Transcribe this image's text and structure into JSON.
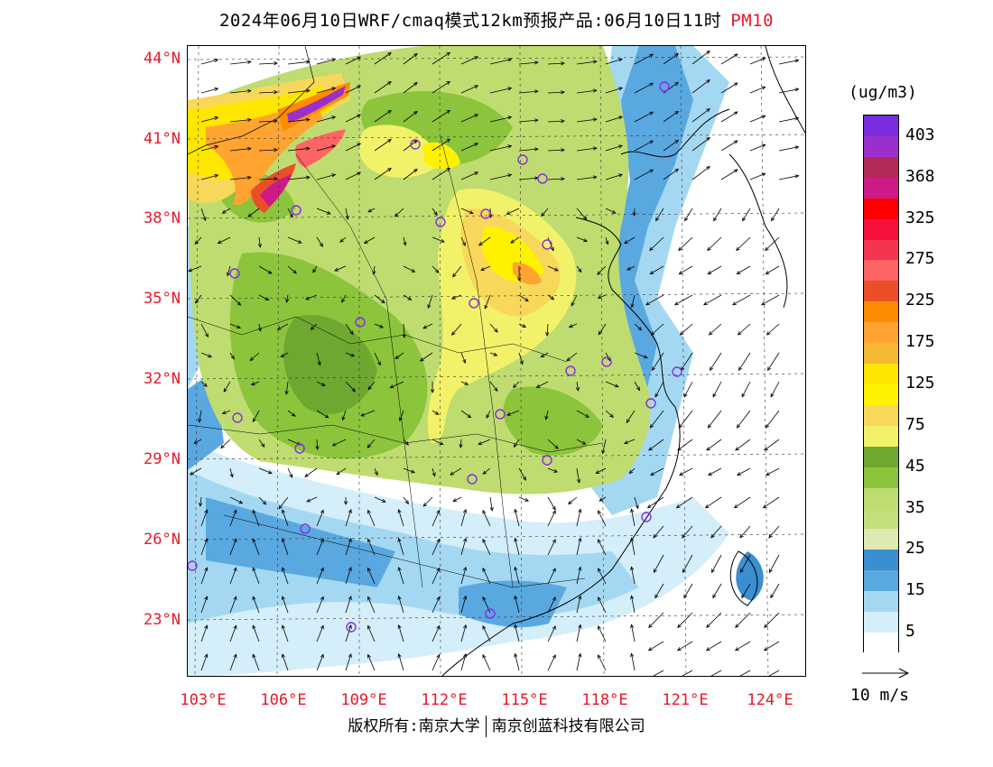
{
  "title": {
    "main": "2024年06月10日WRF/cmaq模式12km预报产品:06月10日11时",
    "pollutant": "PM10",
    "pollutant_color": "#e8182a"
  },
  "lat_labels": [
    "44°N",
    "41°N",
    "38°N",
    "35°N",
    "32°N",
    "29°N",
    "26°N",
    "23°N"
  ],
  "lon_labels": [
    "103°E",
    "106°E",
    "109°E",
    "112°E",
    "115°E",
    "118°E",
    "121°E",
    "124°E"
  ],
  "legend": {
    "unit": "(ug/m3)",
    "ticks": [
      "403",
      "368",
      "325",
      "275",
      "225",
      "175",
      "125",
      "75",
      "45",
      "35",
      "25",
      "15",
      "5"
    ],
    "colors": [
      "#7a2de0",
      "#9b2fcc",
      "#b02a5a",
      "#cc1a86",
      "#ff0000",
      "#f5113a",
      "#f53450",
      "#ff6464",
      "#ec4e2a",
      "#ff8c00",
      "#ffa430",
      "#f5b834",
      "#ffe600",
      "#fff200",
      "#f8d85a",
      "#f2f26a",
      "#6ea830",
      "#8cc43c",
      "#bedc70",
      "#c2df7c",
      "#deeab4",
      "#3a8fd0",
      "#5aa8e0",
      "#a4d8f2",
      "#d4eefa",
      "#ffffff"
    ]
  },
  "vector_reference": "10 m/s",
  "copyright": {
    "left": "版权所有:南京大学",
    "right": "南京创蓝科技有限公司"
  },
  "colors": {
    "label_red": "#e8182a",
    "station_marker": "#8a2be2"
  }
}
